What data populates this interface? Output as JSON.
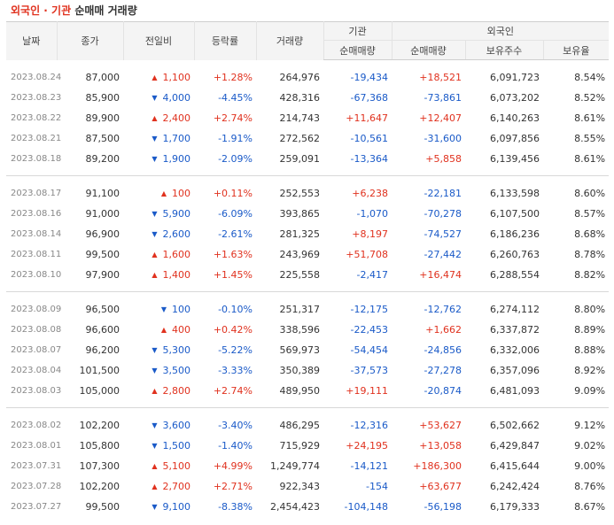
{
  "title": {
    "part1": "외국인 · 기관",
    "part2": "순매매 거래량"
  },
  "header": {
    "date": "날짜",
    "close": "종가",
    "change": "전일비",
    "rate": "등락률",
    "volume": "거래량",
    "institution": "기관",
    "foreign": "외국인",
    "inst_net": "순매매량",
    "frn_net": "순매매량",
    "holdings": "보유주수",
    "hold_rate": "보유율"
  },
  "colors": {
    "up": "#e0311e",
    "down": "#1a5ac8",
    "title": "#e0311e"
  },
  "groups": [
    [
      {
        "date": "2023.08.24",
        "close": "87,000",
        "dir": "up",
        "change": "1,100",
        "rate": "+1.28%",
        "volume": "264,976",
        "inst": "-19,434",
        "frn": "+18,521",
        "hold": "6,091,723",
        "holdr": "8.54%"
      },
      {
        "date": "2023.08.23",
        "close": "85,900",
        "dir": "down",
        "change": "4,000",
        "rate": "-4.45%",
        "volume": "428,316",
        "inst": "-67,368",
        "frn": "-73,861",
        "hold": "6,073,202",
        "holdr": "8.52%"
      },
      {
        "date": "2023.08.22",
        "close": "89,900",
        "dir": "up",
        "change": "2,400",
        "rate": "+2.74%",
        "volume": "214,743",
        "inst": "+11,647",
        "frn": "+12,407",
        "hold": "6,140,263",
        "holdr": "8.61%"
      },
      {
        "date": "2023.08.21",
        "close": "87,500",
        "dir": "down",
        "change": "1,700",
        "rate": "-1.91%",
        "volume": "272,562",
        "inst": "-10,561",
        "frn": "-31,600",
        "hold": "6,097,856",
        "holdr": "8.55%"
      },
      {
        "date": "2023.08.18",
        "close": "89,200",
        "dir": "down",
        "change": "1,900",
        "rate": "-2.09%",
        "volume": "259,091",
        "inst": "-13,364",
        "frn": "+5,858",
        "hold": "6,139,456",
        "holdr": "8.61%"
      }
    ],
    [
      {
        "date": "2023.08.17",
        "close": "91,100",
        "dir": "up",
        "change": "100",
        "rate": "+0.11%",
        "volume": "252,553",
        "inst": "+6,238",
        "frn": "-22,181",
        "hold": "6,133,598",
        "holdr": "8.60%"
      },
      {
        "date": "2023.08.16",
        "close": "91,000",
        "dir": "down",
        "change": "5,900",
        "rate": "-6.09%",
        "volume": "393,865",
        "inst": "-1,070",
        "frn": "-70,278",
        "hold": "6,107,500",
        "holdr": "8.57%"
      },
      {
        "date": "2023.08.14",
        "close": "96,900",
        "dir": "down",
        "change": "2,600",
        "rate": "-2.61%",
        "volume": "281,325",
        "inst": "+8,197",
        "frn": "-74,527",
        "hold": "6,186,236",
        "holdr": "8.68%"
      },
      {
        "date": "2023.08.11",
        "close": "99,500",
        "dir": "up",
        "change": "1,600",
        "rate": "+1.63%",
        "volume": "243,969",
        "inst": "+51,708",
        "frn": "-27,442",
        "hold": "6,260,763",
        "holdr": "8.78%"
      },
      {
        "date": "2023.08.10",
        "close": "97,900",
        "dir": "up",
        "change": "1,400",
        "rate": "+1.45%",
        "volume": "225,558",
        "inst": "-2,417",
        "frn": "+16,474",
        "hold": "6,288,554",
        "holdr": "8.82%"
      }
    ],
    [
      {
        "date": "2023.08.09",
        "close": "96,500",
        "dir": "down",
        "change": "100",
        "rate": "-0.10%",
        "volume": "251,317",
        "inst": "-12,175",
        "frn": "-12,762",
        "hold": "6,274,112",
        "holdr": "8.80%"
      },
      {
        "date": "2023.08.08",
        "close": "96,600",
        "dir": "up",
        "change": "400",
        "rate": "+0.42%",
        "volume": "338,596",
        "inst": "-22,453",
        "frn": "+1,662",
        "hold": "6,337,872",
        "holdr": "8.89%"
      },
      {
        "date": "2023.08.07",
        "close": "96,200",
        "dir": "down",
        "change": "5,300",
        "rate": "-5.22%",
        "volume": "569,973",
        "inst": "-54,454",
        "frn": "-24,856",
        "hold": "6,332,006",
        "holdr": "8.88%"
      },
      {
        "date": "2023.08.04",
        "close": "101,500",
        "dir": "down",
        "change": "3,500",
        "rate": "-3.33%",
        "volume": "350,389",
        "inst": "-37,573",
        "frn": "-27,278",
        "hold": "6,357,096",
        "holdr": "8.92%"
      },
      {
        "date": "2023.08.03",
        "close": "105,000",
        "dir": "up",
        "change": "2,800",
        "rate": "+2.74%",
        "volume": "489,950",
        "inst": "+19,111",
        "frn": "-20,874",
        "hold": "6,481,093",
        "holdr": "9.09%"
      }
    ],
    [
      {
        "date": "2023.08.02",
        "close": "102,200",
        "dir": "down",
        "change": "3,600",
        "rate": "-3.40%",
        "volume": "486,295",
        "inst": "-12,316",
        "frn": "+53,627",
        "hold": "6,502,662",
        "holdr": "9.12%"
      },
      {
        "date": "2023.08.01",
        "close": "105,800",
        "dir": "down",
        "change": "1,500",
        "rate": "-1.40%",
        "volume": "715,929",
        "inst": "+24,195",
        "frn": "+13,058",
        "hold": "6,429,847",
        "holdr": "9.02%"
      },
      {
        "date": "2023.07.31",
        "close": "107,300",
        "dir": "up",
        "change": "5,100",
        "rate": "+4.99%",
        "volume": "1,249,774",
        "inst": "-14,121",
        "frn": "+186,300",
        "hold": "6,415,644",
        "holdr": "9.00%"
      },
      {
        "date": "2023.07.28",
        "close": "102,200",
        "dir": "up",
        "change": "2,700",
        "rate": "+2.71%",
        "volume": "922,343",
        "inst": "-154",
        "frn": "+63,677",
        "hold": "6,242,424",
        "holdr": "8.76%"
      },
      {
        "date": "2023.07.27",
        "close": "99,500",
        "dir": "down",
        "change": "9,100",
        "rate": "-8.38%",
        "volume": "2,454,423",
        "inst": "-104,148",
        "frn": "-56,198",
        "hold": "6,179,333",
        "holdr": "8.67%"
      }
    ]
  ]
}
